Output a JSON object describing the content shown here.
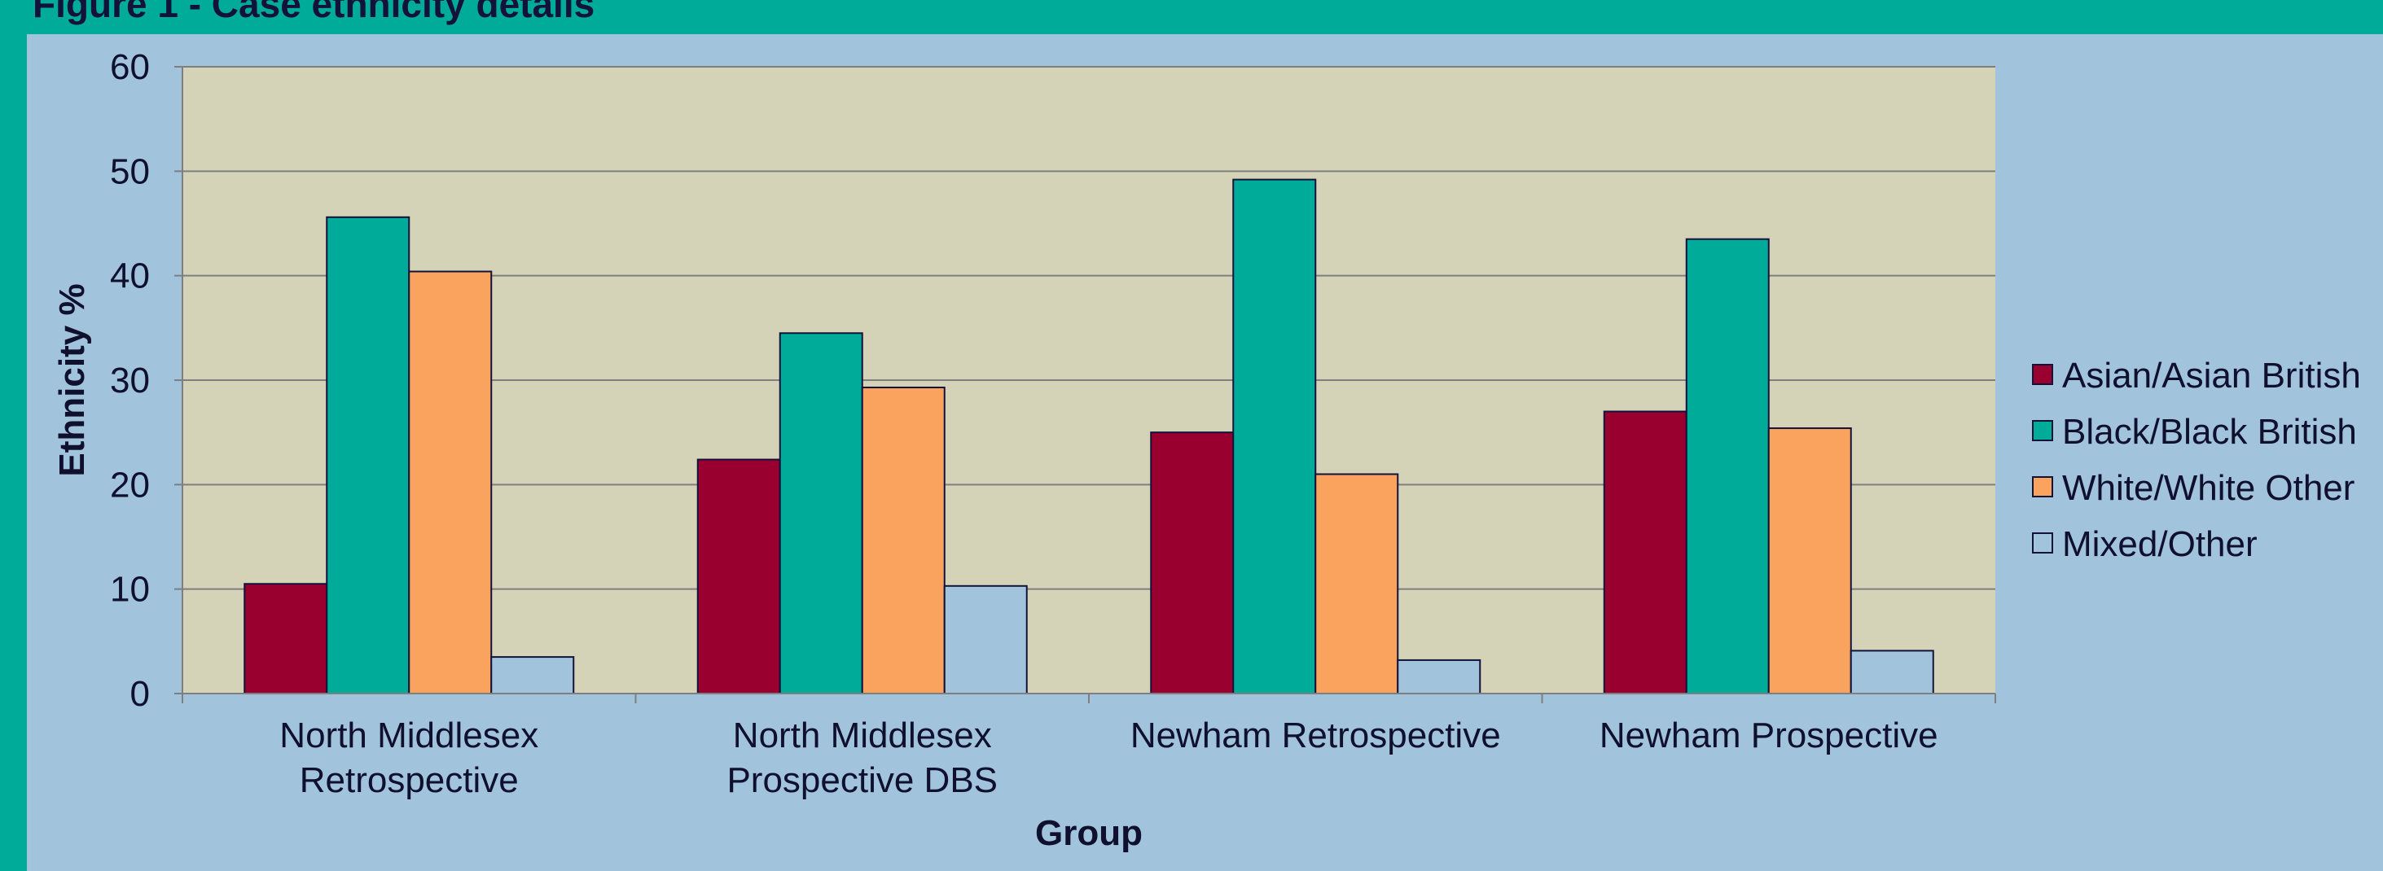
{
  "figure_title": "Figure 1 - Case ethnicity details",
  "chart_data": {
    "type": "bar",
    "xlabel": "Group",
    "ylabel": "Ethnicity %",
    "ylim": [
      0,
      60
    ],
    "yticks": [
      0,
      10,
      20,
      30,
      40,
      50,
      60
    ],
    "categories": [
      [
        "North Middlesex",
        "Retrospective"
      ],
      [
        "North Middlesex",
        "Prospective DBS"
      ],
      [
        "Newham Retrospective"
      ],
      [
        "Newham Prospective"
      ]
    ],
    "series": [
      {
        "name": "Asian/Asian British",
        "color": "#990030",
        "values": [
          10.5,
          22.4,
          25.0,
          27.0
        ]
      },
      {
        "name": "Black/Black British",
        "color": "#00ab9a",
        "values": [
          45.6,
          34.5,
          49.2,
          43.5
        ]
      },
      {
        "name": "White/White Other",
        "color": "#f9a35f",
        "values": [
          40.4,
          29.3,
          21.0,
          25.4
        ]
      },
      {
        "name": "Mixed/Other",
        "color": "#a1c3db",
        "values": [
          3.5,
          10.3,
          3.2,
          4.1
        ]
      }
    ],
    "grid": true,
    "legend_position": "right",
    "plot_background": "#d4d3b8"
  }
}
